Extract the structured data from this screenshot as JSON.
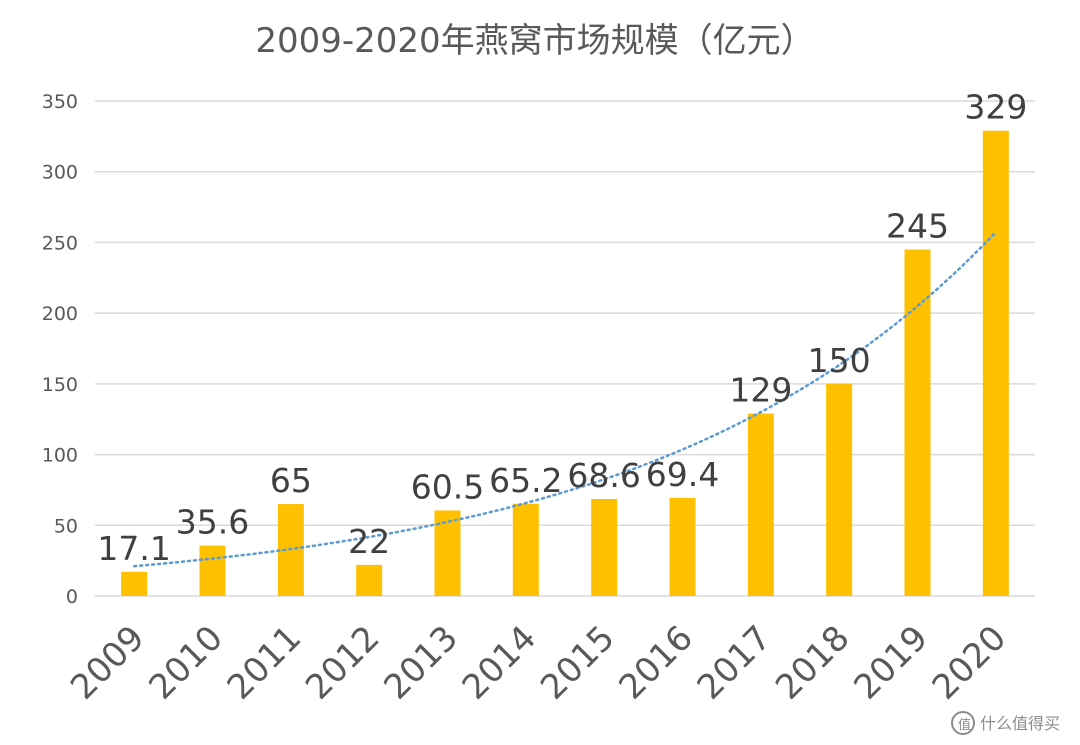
{
  "chart_data": {
    "type": "bar",
    "title": "2009-2020年燕窝市场规模（亿元）",
    "xlabel": "",
    "ylabel": "",
    "categories": [
      "2009",
      "2010",
      "2011",
      "2012",
      "2013",
      "2014",
      "2015",
      "2016",
      "2017",
      "2018",
      "2019",
      "2020"
    ],
    "values": [
      17.1,
      35.6,
      65,
      22,
      60.5,
      65.2,
      68.6,
      69.4,
      129,
      150,
      245,
      329
    ],
    "data_labels": [
      "17.1",
      "35.6",
      "65",
      "22",
      "60.5",
      "65.2",
      "68.6",
      "69.4",
      "129",
      "150",
      "245",
      "329"
    ],
    "ylim": [
      0,
      350
    ],
    "yticks": [
      0,
      50,
      100,
      150,
      200,
      250,
      300,
      350
    ],
    "grid": true,
    "legend": "none",
    "trendline": {
      "type": "exponential",
      "style": "dotted"
    },
    "colors": {
      "bar": "#FFC000",
      "trend": "#5B9BD5",
      "grid": "#d9d9d9",
      "text": "#595959"
    }
  },
  "watermark": {
    "text": "什么值得买",
    "icon": "smzdm-logo-icon"
  }
}
